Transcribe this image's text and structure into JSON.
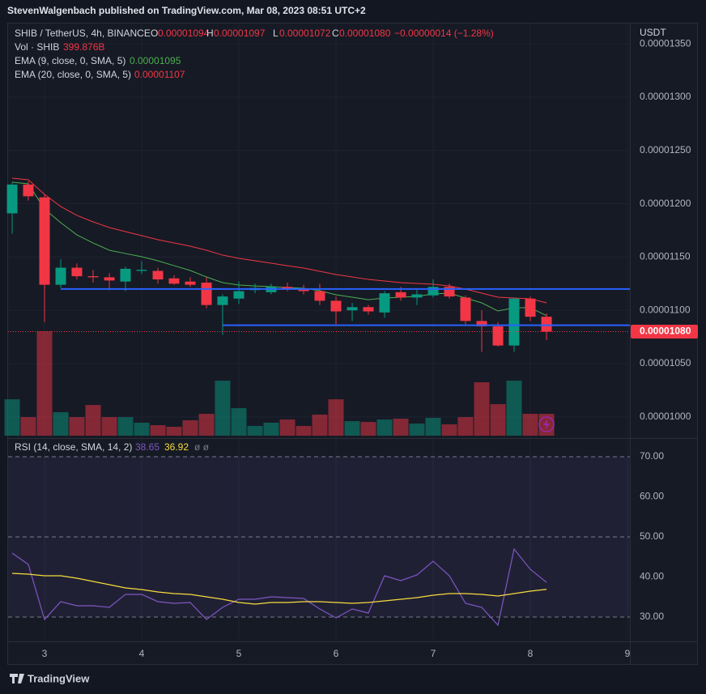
{
  "header": {
    "text": "StevenWalgenbach published on TradingView.com, Mar 08, 2023 08:51 UTC+2"
  },
  "footer": {
    "brand": "TradingView"
  },
  "chart_data": [
    {
      "type": "candlestick",
      "legend": {
        "symbol": "SHIB / TetherUS, 4h, BINANCE",
        "o": "O",
        "h": "H",
        "l": "L",
        "c": "C",
        "change": "−0.00000014 (−1.28%)",
        "volume": "Vol · SHIB",
        "ema9": "EMA (9, close, 0, SMA, 5)",
        "ema20": "EMA (20, close, 0, SMA, 5)"
      },
      "axis_unit": "USDT",
      "x": [
        2.667,
        2.833,
        3,
        3.167,
        3.333,
        3.5,
        3.667,
        3.833,
        4,
        4.167,
        4.333,
        4.5,
        4.667,
        4.833,
        5,
        5.167,
        5.333,
        5.5,
        5.667,
        5.833,
        6,
        6.167,
        6.333,
        6.5,
        6.667,
        6.833,
        7,
        7.167,
        7.333,
        7.5,
        7.667,
        7.833,
        8,
        8.167
      ],
      "open": [
        1.191e-05,
        1.218e-05,
        1.206e-05,
        1.124e-05,
        1.14e-05,
        1.132e-05,
        1.131e-05,
        1.127e-05,
        1.137e-05,
        1.137e-05,
        1.13e-05,
        1.127e-05,
        1.126e-05,
        1.105e-05,
        1.111e-05,
        1.119e-05,
        1.117e-05,
        1.122e-05,
        1.12e-05,
        1.118e-05,
        1.109e-05,
        1.1e-05,
        1.103e-05,
        1.098e-05,
        1.117e-05,
        1.112e-05,
        1.114e-05,
        1.122e-05,
        1.112e-05,
        1.09e-05,
        1.085e-05,
        1.067e-05,
        1.111e-05,
        1.094e-05
      ],
      "high": [
        1.22e-05,
        1.221e-05,
        1.209e-05,
        1.148e-05,
        1.144e-05,
        1.138e-05,
        1.135e-05,
        1.141e-05,
        1.146e-05,
        1.14e-05,
        1.133e-05,
        1.131e-05,
        1.131e-05,
        1.115e-05,
        1.127e-05,
        1.125e-05,
        1.125e-05,
        1.126e-05,
        1.124e-05,
        1.125e-05,
        1.113e-05,
        1.107e-05,
        1.105e-05,
        1.118e-05,
        1.122e-05,
        1.119e-05,
        1.129e-05,
        1.125e-05,
        1.114e-05,
        1.1e-05,
        1.089e-05,
        1.112e-05,
        1.113e-05,
        1.097e-05
      ],
      "low": [
        1.172e-05,
        1.203e-05,
        1.089e-05,
        1.121e-05,
        1.129e-05,
        1.126e-05,
        1.119e-05,
        1.118e-05,
        1.134e-05,
        1.125e-05,
        1.124e-05,
        1.122e-05,
        1.102e-05,
        1.077e-05,
        1.106e-05,
        1.116e-05,
        1.115e-05,
        1.118e-05,
        1.115e-05,
        1.105e-05,
        1.087e-05,
        1.09e-05,
        1.096e-05,
        1.093e-05,
        1.109e-05,
        1.105e-05,
        1.112e-05,
        1.111e-05,
        1.087e-05,
        1.061e-05,
        1.066e-05,
        1.061e-05,
        1.09e-05,
        1.072e-05
      ],
      "close": [
        1.218e-05,
        1.207e-05,
        1.124e-05,
        1.14e-05,
        1.132e-05,
        1.131e-05,
        1.128e-05,
        1.139e-05,
        1.138e-05,
        1.129e-05,
        1.125e-05,
        1.124e-05,
        1.105e-05,
        1.113e-05,
        1.118e-05,
        1.121e-05,
        1.122e-05,
        1.12e-05,
        1.118e-05,
        1.109e-05,
        1.099e-05,
        1.103e-05,
        1.099e-05,
        1.116e-05,
        1.112e-05,
        1.115e-05,
        1.122e-05,
        1.113e-05,
        1.09e-05,
        1.085e-05,
        1.067e-05,
        1.111e-05,
        1.094e-05,
        1.08e-05
      ],
      "close_label": "0.00001080",
      "volume": [
        666,
        340,
        1909,
        429,
        340,
        562,
        340,
        340,
        237,
        192,
        163,
        281,
        400,
        1006,
        503,
        178,
        237,
        296,
        178,
        385,
        666,
        266,
        252,
        296,
        311,
        222,
        326,
        207,
        340,
        977,
        577,
        1006,
        400,
        399.876
      ],
      "volume_label": "399.876B",
      "volume_lim": [
        0,
        2000
      ],
      "up_color": "#089981",
      "down_color": "#f23645",
      "series": [
        {
          "color": "#4caf50",
          "values": [
            1.2202e-05,
            1.2187e-05,
            1.1951e-05,
            1.1822e-05,
            1.1708e-05,
            1.1632e-05,
            1.1564e-05,
            1.1533e-05,
            1.1503e-05,
            1.1465e-05,
            1.1419e-05,
            1.1374e-05,
            1.1313e-05,
            1.126e-05,
            1.1237e-05,
            1.1229e-05,
            1.1222e-05,
            1.1214e-05,
            1.1207e-05,
            1.1184e-05,
            1.1146e-05,
            1.1123e-05,
            1.11e-05,
            1.1116e-05,
            1.1123e-05,
            1.1131e-05,
            1.1154e-05,
            1.1161e-05,
            1.1116e-05,
            1.107e-05,
            1.0994e-05,
            1.1024e-05,
            1.1024e-05,
            1.095e-05
          ]
        },
        {
          "color": "#f23645",
          "values": [
            1.224e-05,
            1.2225e-05,
            1.2088e-05,
            1.1974e-05,
            1.1891e-05,
            1.183e-05,
            1.1777e-05,
            1.1739e-05,
            1.1701e-05,
            1.1663e-05,
            1.1632e-05,
            1.1602e-05,
            1.1564e-05,
            1.1518e-05,
            1.1488e-05,
            1.1465e-05,
            1.1442e-05,
            1.1419e-05,
            1.1397e-05,
            1.1366e-05,
            1.1336e-05,
            1.1313e-05,
            1.129e-05,
            1.1275e-05,
            1.126e-05,
            1.1252e-05,
            1.1245e-05,
            1.1229e-05,
            1.1199e-05,
            1.1161e-05,
            1.1123e-05,
            1.1116e-05,
            1.1108e-05,
            1.107e-05
          ]
        }
      ],
      "hlines": [
        {
          "value": 1.12e-05,
          "x_start": 3.167,
          "color": "#2962ff"
        },
        {
          "value": 1.086e-05,
          "x_start": 4.833,
          "color": "#2962ff"
        }
      ],
      "xlim": [
        2.625,
        9.025
      ],
      "xticks": [
        3,
        4,
        5,
        6,
        7,
        8,
        9
      ],
      "ylim": [
        9.824e-06,
        1.3699e-05
      ],
      "yticks": [
        {
          "value": 1e-05,
          "label": "0.00001000"
        },
        {
          "value": 1.05e-05,
          "label": "0.00001050"
        },
        {
          "value": 1.1e-05,
          "label": "0.00001100"
        },
        {
          "value": 1.15e-05,
          "label": "0.00001150"
        },
        {
          "value": 1.2e-05,
          "label": "0.00001200"
        },
        {
          "value": 1.25e-05,
          "label": "0.00001250"
        },
        {
          "value": 1.3e-05,
          "label": "0.00001300"
        },
        {
          "value": 1.35e-05,
          "label": "0.00001350"
        }
      ],
      "grid": true
    },
    {
      "type": "line",
      "legend": {
        "name": "RSI (14, close, SMA, 14, 2)",
        "extra": "ø ø"
      },
      "series": [
        {
          "color": "#7e57c2",
          "values": [
            45.96,
            43.13,
            29.39,
            33.84,
            32.83,
            32.83,
            32.42,
            35.66,
            35.66,
            33.84,
            33.43,
            33.64,
            29.39,
            32.42,
            34.44,
            34.44,
            35.05,
            34.85,
            34.65,
            32.02,
            29.8,
            32.02,
            31.01,
            40.3,
            39.09,
            40.51,
            43.94,
            40.3,
            33.43,
            32.42,
            27.98,
            46.97,
            41.92,
            38.65
          ]
        },
        {
          "color": "#f7dc3b",
          "values": [
            40.91,
            40.71,
            40.3,
            40.3,
            39.7,
            38.89,
            38.08,
            37.27,
            36.87,
            36.26,
            35.86,
            35.66,
            35.05,
            34.44,
            33.64,
            33.23,
            33.64,
            33.64,
            33.84,
            33.84,
            33.64,
            33.43,
            33.64,
            34.04,
            34.44,
            34.85,
            35.45,
            35.86,
            35.86,
            35.66,
            35.25,
            35.86,
            36.46,
            36.92
          ]
        }
      ],
      "levels": [
        70,
        50,
        30
      ],
      "band_color": "#7e57c2",
      "ylim": [
        24.34,
        73.84
      ],
      "yticks": [
        {
          "value": 30,
          "label": "30.00"
        },
        {
          "value": 40,
          "label": "40.00"
        },
        {
          "value": 50,
          "label": "50.00"
        },
        {
          "value": 60,
          "label": "60.00"
        },
        {
          "value": 70,
          "label": "70.00"
        }
      ]
    }
  ]
}
